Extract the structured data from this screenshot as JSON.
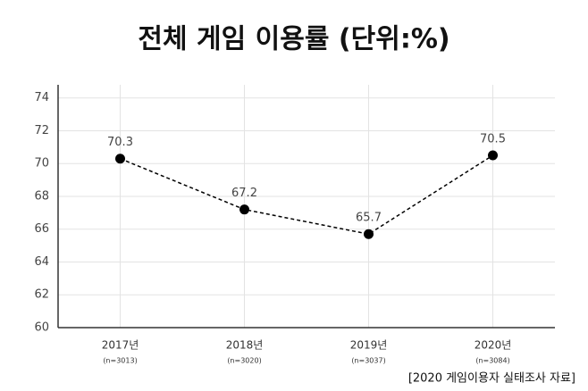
{
  "chart_data": {
    "type": "line",
    "title": "전체 게임 이용률 (단위:%)",
    "categories": [
      "2017년",
      "2018년",
      "2019년",
      "2020년"
    ],
    "sample_sizes": [
      "(n=3013)",
      "(n=3020)",
      "(n=3037)",
      "(n=3084)"
    ],
    "values": [
      70.3,
      67.2,
      65.7,
      70.5
    ],
    "color": "#000000",
    "ylim": [
      60,
      74.8
    ],
    "yticks": [
      60,
      62,
      64,
      66,
      68,
      70,
      72,
      74
    ],
    "grid": true,
    "source": "[2020 게임이용자 실태조사 자료]"
  }
}
